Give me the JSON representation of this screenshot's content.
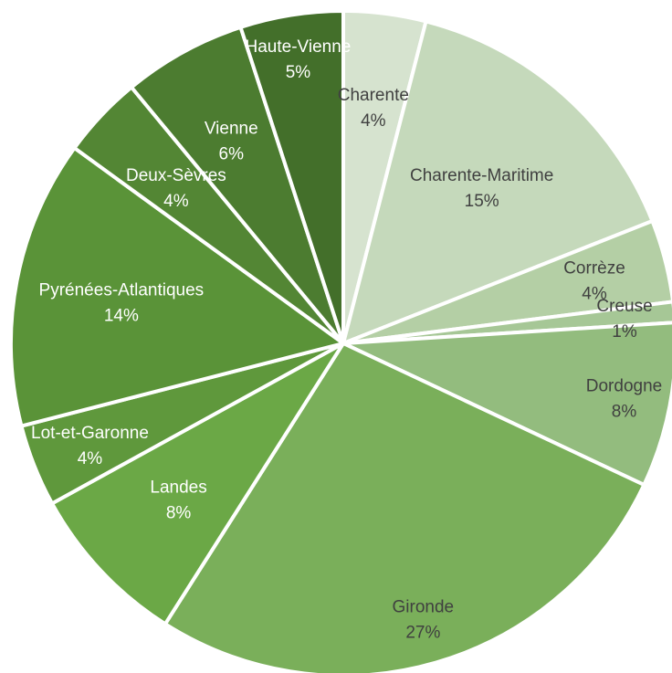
{
  "chart_data": {
    "type": "pie",
    "title": "",
    "legend": "none",
    "slices": [
      {
        "label": "Charente",
        "value": 4,
        "display": "4%",
        "color": "#d6e3cf",
        "text_color": "#404040"
      },
      {
        "label": "Charente-Maritime",
        "value": 15,
        "display": "15%",
        "color": "#c5d9bb",
        "text_color": "#404040"
      },
      {
        "label": "Corrèze",
        "value": 4,
        "display": "4%",
        "color": "#b4cfa5",
        "text_color": "#404040"
      },
      {
        "label": "Creuse",
        "value": 1,
        "display": "1%",
        "color": "#a6c796",
        "text_color": "#404040"
      },
      {
        "label": "Dordogne",
        "value": 8,
        "display": "8%",
        "color": "#93bc7e",
        "text_color": "#404040"
      },
      {
        "label": "Gironde",
        "value": 27,
        "display": "27%",
        "color": "#7aaf5a",
        "text_color": "#404040"
      },
      {
        "label": "Landes",
        "value": 8,
        "display": "8%",
        "color": "#6ba846",
        "text_color": "#ffffff"
      },
      {
        "label": "Lot-et-Garonne",
        "value": 4,
        "display": "4%",
        "color": "#5f983c",
        "text_color": "#ffffff"
      },
      {
        "label": "Pyrénées-Atlantiques",
        "value": 14,
        "display": "14%",
        "color": "#5a9338",
        "text_color": "#ffffff"
      },
      {
        "label": "Deux-Sèvres",
        "value": 4,
        "display": "4%",
        "color": "#538634",
        "text_color": "#ffffff"
      },
      {
        "label": "Vienne",
        "value": 6,
        "display": "6%",
        "color": "#4c7c30",
        "text_color": "#ffffff"
      },
      {
        "label": "Haute-Vienne",
        "value": 5,
        "display": "5%",
        "color": "#436f2a",
        "text_color": "#ffffff"
      }
    ]
  }
}
